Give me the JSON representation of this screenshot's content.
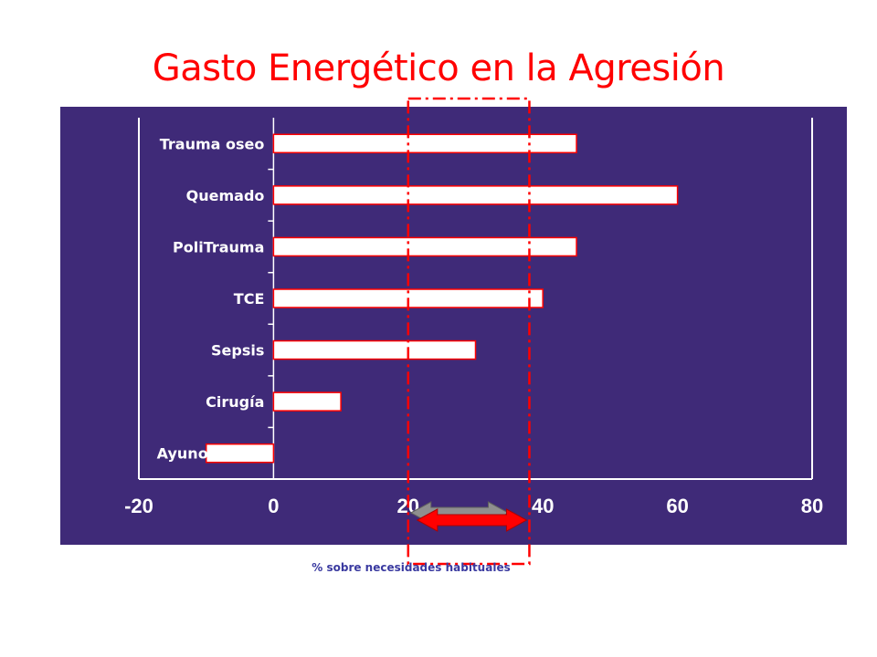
{
  "title": "Gasto Energético en la Agresión",
  "chart_data": {
    "type": "bar",
    "orientation": "horizontal",
    "title": "Gasto Energético en la Agresión",
    "xlabel": "% sobre necesidades habituales",
    "ylabel": "",
    "categories": [
      "Trauma oseo",
      "Quemado",
      "PoliTrauma",
      "TCE",
      "Sepsis",
      "Cirugía",
      "Ayuno"
    ],
    "values": [
      45,
      60,
      45,
      40,
      30,
      10,
      -10
    ],
    "xlim": [
      -20,
      80
    ],
    "xticks": [
      -20,
      0,
      20,
      40,
      60,
      80
    ],
    "grid": false,
    "highlight_range": [
      20,
      38
    ],
    "colors": {
      "panel": "#3f2a78",
      "bar_fill": "#ffffff",
      "bar_border": "#ff0000",
      "axis": "#ffffff",
      "text": "#ffffff",
      "highlight": "#ff0000",
      "arrow_front": "#ff0000",
      "arrow_back": "#8f8f8f"
    }
  }
}
